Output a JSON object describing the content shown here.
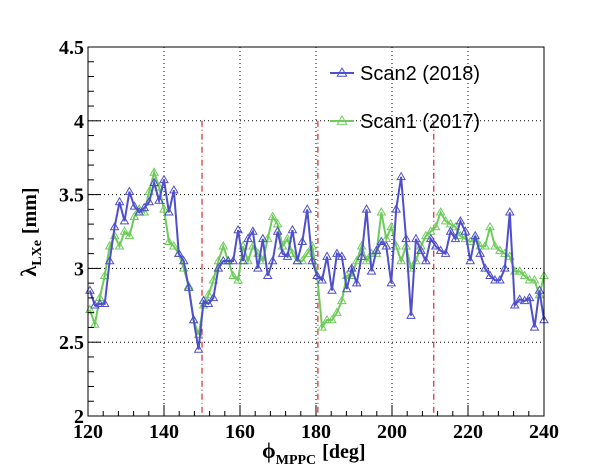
{
  "chart_data": {
    "type": "line",
    "title": "",
    "xlabel": "ϕ",
    "xlabel_sub": "MPPC",
    "xlabel_unit": "[deg]",
    "ylabel": "λ",
    "ylabel_sub": "LXe",
    "ylabel_unit": "[mm]",
    "xlim": [
      120,
      240
    ],
    "ylim": [
      2,
      4.5
    ],
    "x_ticks": [
      "120",
      "140",
      "160",
      "180",
      "200",
      "220",
      "240"
    ],
    "y_ticks": [
      "2",
      "2.5",
      "3",
      "3.5",
      "4",
      "4.5"
    ],
    "grid": true,
    "legend_position": "top-right",
    "vertical_lines": [
      150,
      180.5,
      211
    ],
    "vertical_line_color": "#cc0000",
    "series": [
      {
        "name": "Scan2 (2018)",
        "color": "#4f4fcc",
        "marker": "open-triangle",
        "x": [
          120.5,
          121.8,
          123.1,
          124.4,
          125.7,
          127.0,
          128.3,
          129.6,
          130.9,
          132.2,
          133.5,
          134.8,
          136.1,
          137.4,
          138.7,
          140.0,
          141.3,
          142.6,
          143.9,
          145.2,
          146.5,
          147.8,
          149.1,
          150.4,
          151.7,
          153.0,
          154.3,
          155.6,
          156.9,
          158.2,
          159.5,
          160.8,
          162.1,
          163.4,
          164.7,
          166.0,
          167.3,
          168.6,
          169.9,
          171.2,
          172.5,
          173.8,
          175.1,
          176.4,
          177.7,
          179.0,
          180.3,
          181.6,
          182.9,
          184.2,
          185.5,
          186.8,
          188.1,
          189.4,
          190.7,
          192.0,
          193.3,
          194.6,
          195.9,
          197.2,
          198.5,
          199.8,
          201.1,
          202.4,
          203.7,
          205.0,
          206.3,
          207.6,
          208.9,
          210.2,
          211.5,
          212.8,
          214.1,
          215.4,
          216.7,
          218.0,
          219.3,
          220.6,
          221.9,
          223.2,
          224.5,
          225.8,
          227.1,
          228.4,
          229.7,
          231.0,
          232.3,
          233.6,
          234.9,
          236.2,
          237.5,
          238.8,
          240.0
        ],
        "values": [
          2.85,
          2.75,
          2.76,
          2.76,
          3.05,
          3.28,
          3.45,
          3.32,
          3.52,
          3.42,
          3.38,
          3.41,
          3.45,
          3.58,
          3.46,
          3.6,
          3.38,
          3.53,
          3.1,
          3.05,
          2.87,
          2.65,
          2.45,
          2.78,
          2.76,
          2.8,
          3.0,
          3.05,
          3.05,
          3.05,
          3.26,
          3.05,
          3.2,
          3.25,
          3.0,
          3.2,
          2.95,
          3.05,
          3.25,
          3.1,
          3.08,
          3.26,
          3.05,
          3.18,
          3.4,
          3.05,
          2.95,
          2.92,
          3.08,
          2.85,
          3.1,
          3.08,
          2.86,
          3.0,
          2.9,
          3.08,
          3.4,
          2.98,
          3.12,
          3.18,
          3.15,
          2.9,
          3.4,
          3.62,
          3.2,
          2.68,
          3.2,
          3.12,
          3.05,
          3.2,
          3.15,
          3.12,
          3.1,
          3.25,
          3.2,
          3.32,
          3.25,
          3.05,
          3.22,
          3.1,
          3.0,
          2.95,
          2.92,
          2.92,
          3.0,
          3.38,
          2.75,
          2.79,
          2.78,
          2.8,
          2.6,
          2.85,
          2.65
        ]
      },
      {
        "name": "Scan1 (2017)",
        "color": "#6dcc5a",
        "marker": "open-triangle",
        "x": [
          120.5,
          121.8,
          123.1,
          124.4,
          125.7,
          127.0,
          128.3,
          129.6,
          130.9,
          132.2,
          133.5,
          134.8,
          136.1,
          137.4,
          138.7,
          140.0,
          141.3,
          142.6,
          143.9,
          145.2,
          146.5,
          147.8,
          149.1,
          150.4,
          151.7,
          153.0,
          154.3,
          155.6,
          156.9,
          158.2,
          159.5,
          160.8,
          162.1,
          163.4,
          164.7,
          166.0,
          167.3,
          168.6,
          169.9,
          171.2,
          172.5,
          173.8,
          175.1,
          176.4,
          177.7,
          179.0,
          180.3,
          181.6,
          182.9,
          184.2,
          185.5,
          186.8,
          188.1,
          189.4,
          190.7,
          192.0,
          193.3,
          194.6,
          195.9,
          197.2,
          198.5,
          199.8,
          201.1,
          202.4,
          203.7,
          205.0,
          206.3,
          207.6,
          208.9,
          210.2,
          211.5,
          212.8,
          214.1,
          215.4,
          216.7,
          218.0,
          219.3,
          220.6,
          221.9,
          223.2,
          224.5,
          225.8,
          227.1,
          228.4,
          229.7,
          231.0,
          232.3,
          233.6,
          234.9,
          236.2,
          237.5,
          238.8,
          240.0
        ],
        "values": [
          2.72,
          2.62,
          2.8,
          2.95,
          3.15,
          3.22,
          3.15,
          3.25,
          3.22,
          3.35,
          3.4,
          3.38,
          3.52,
          3.65,
          3.55,
          3.4,
          3.18,
          3.15,
          3.1,
          3.0,
          2.88,
          2.65,
          2.55,
          2.75,
          2.82,
          2.92,
          3.05,
          3.15,
          3.05,
          2.95,
          2.92,
          3.15,
          3.05,
          3.15,
          3.1,
          3.05,
          3.2,
          3.35,
          3.3,
          3.15,
          3.2,
          3.1,
          3.05,
          3.05,
          3.1,
          3.15,
          2.95,
          2.6,
          2.65,
          2.65,
          2.7,
          2.78,
          2.95,
          2.95,
          3.05,
          3.15,
          3.05,
          3.1,
          3.1,
          3.38,
          3.2,
          3.28,
          3.15,
          3.05,
          3.15,
          3.0,
          3.05,
          3.15,
          3.22,
          3.25,
          3.28,
          3.38,
          3.32,
          3.3,
          3.28,
          3.22,
          3.2,
          3.18,
          3.2,
          3.15,
          3.15,
          3.28,
          3.15,
          3.12,
          3.1,
          3.08,
          2.98,
          2.98,
          2.95,
          2.92,
          2.92,
          2.82,
          2.95
        ]
      }
    ]
  }
}
